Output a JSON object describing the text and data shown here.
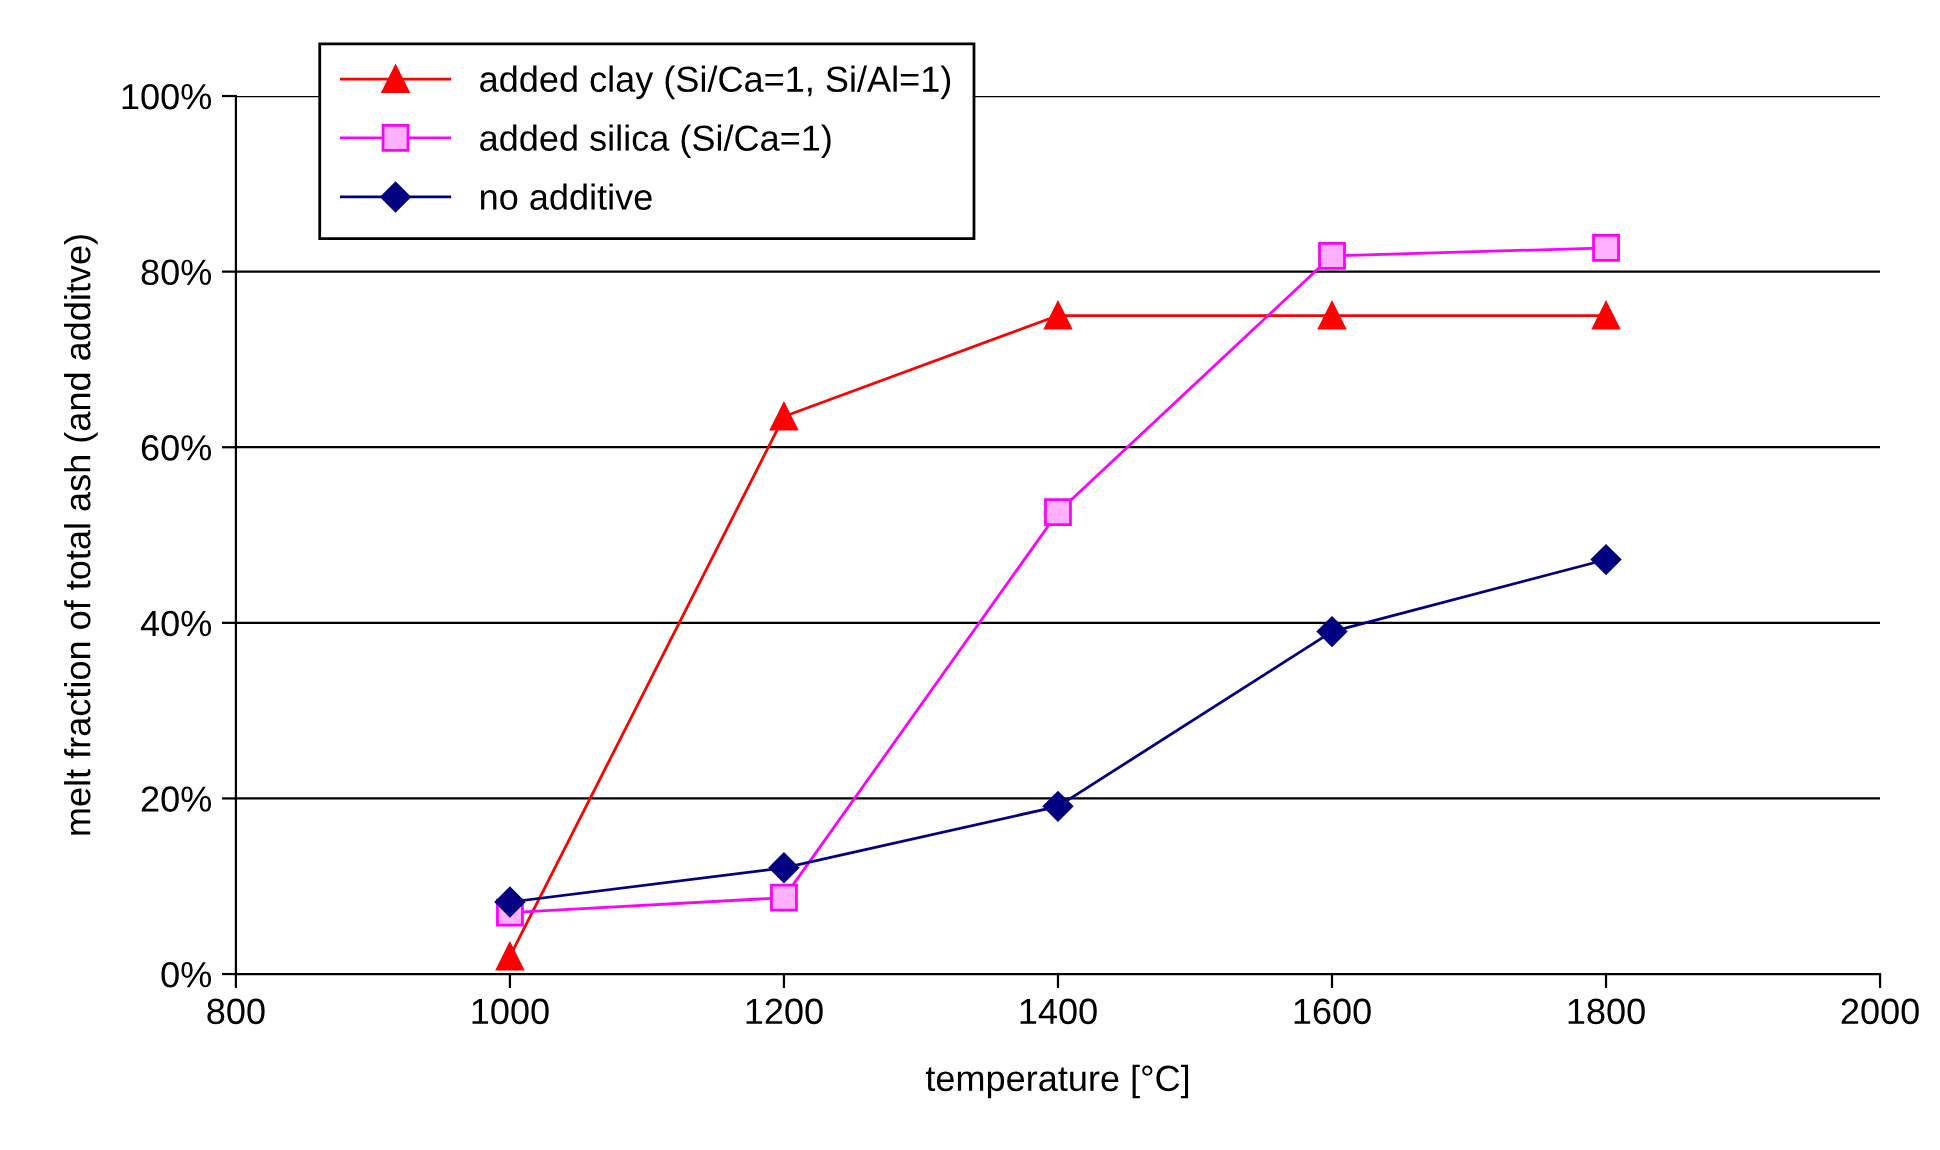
{
  "chart_data": {
    "type": "line",
    "xlabel": "temperature [°C]",
    "ylabel": "melt fraction of total ash (and additve)",
    "x": [
      1000,
      1200,
      1400,
      1600,
      1800
    ],
    "series": [
      {
        "name": "added clay (Si/Ca=1, Si/Al=1)",
        "color": "#ff0000",
        "marker": "triangle",
        "values": [
          2,
          63.5,
          75,
          75,
          75
        ]
      },
      {
        "name": "added silica (Si/Ca=1)",
        "color": "#ff00ff",
        "marker": "square",
        "values": [
          7,
          8.7,
          52.6,
          81.8,
          82.7
        ]
      },
      {
        "name": "no additive",
        "color": "#000080",
        "marker": "diamond",
        "values": [
          8.2,
          12.1,
          19.1,
          39,
          47.2
        ]
      }
    ],
    "xlim": [
      800,
      2000
    ],
    "xticks": [
      800,
      1000,
      1200,
      1400,
      1600,
      1800,
      2000
    ],
    "ylim": [
      0,
      100
    ],
    "yticks": [
      {
        "value": 0,
        "label": "0%"
      },
      {
        "value": 20,
        "label": "20%"
      },
      {
        "value": 40,
        "label": "40%"
      },
      {
        "value": 60,
        "label": "60%"
      },
      {
        "value": 80,
        "label": "80%"
      },
      {
        "value": 100,
        "label": "100%"
      }
    ],
    "grid": "y",
    "legend": "top left",
    "line_style": "solid"
  }
}
